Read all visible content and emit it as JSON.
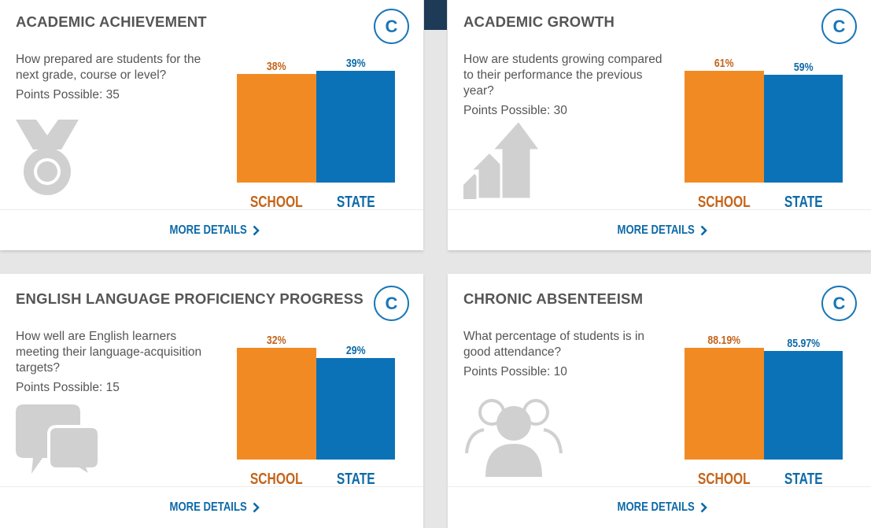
{
  "colors": {
    "school": "#f28a24",
    "state": "#0c72b7",
    "accent": "#1976b8"
  },
  "cards": [
    {
      "title": "ACADEMIC ACHIEVEMENT",
      "grade": "C",
      "question": "How prepared are students for the next grade, course or level?",
      "points": "Points Possible: 35",
      "icon": "medal-icon",
      "chart_data": {
        "type": "bar",
        "categories": [
          "SCHOOL",
          "STATE"
        ],
        "values": [
          38,
          39
        ],
        "labels": [
          "38%",
          "39%"
        ]
      },
      "more": "MORE DETAILS"
    },
    {
      "title": "ACADEMIC GROWTH",
      "grade": "C",
      "question": "How are students growing compared to their performance the previous year?",
      "points": "Points Possible: 30",
      "icon": "growth-arrows-icon",
      "chart_data": {
        "type": "bar",
        "categories": [
          "SCHOOL",
          "STATE"
        ],
        "values": [
          61,
          59
        ],
        "labels": [
          "61%",
          "59%"
        ]
      },
      "more": "MORE DETAILS"
    },
    {
      "title": "ENGLISH LANGUAGE PROFICIENCY PROGRESS",
      "grade": "C",
      "question": "How well are English learners meeting their language-acquisition targets?",
      "points": "Points Possible: 15",
      "icon": "chat-bubbles-icon",
      "chart_data": {
        "type": "bar",
        "categories": [
          "SCHOOL",
          "STATE"
        ],
        "values": [
          32,
          29
        ],
        "labels": [
          "32%",
          "29%"
        ]
      },
      "more": "MORE DETAILS"
    },
    {
      "title": "CHRONIC ABSENTEEISM",
      "grade": "C",
      "question": "What percentage of students is in good attendance?",
      "points": "Points Possible: 10",
      "icon": "people-icon",
      "chart_data": {
        "type": "bar",
        "categories": [
          "SCHOOL",
          "STATE"
        ],
        "values": [
          88.19,
          85.97
        ],
        "labels": [
          "88.19%",
          "85.97%"
        ]
      },
      "more": "MORE DETAILS"
    }
  ]
}
